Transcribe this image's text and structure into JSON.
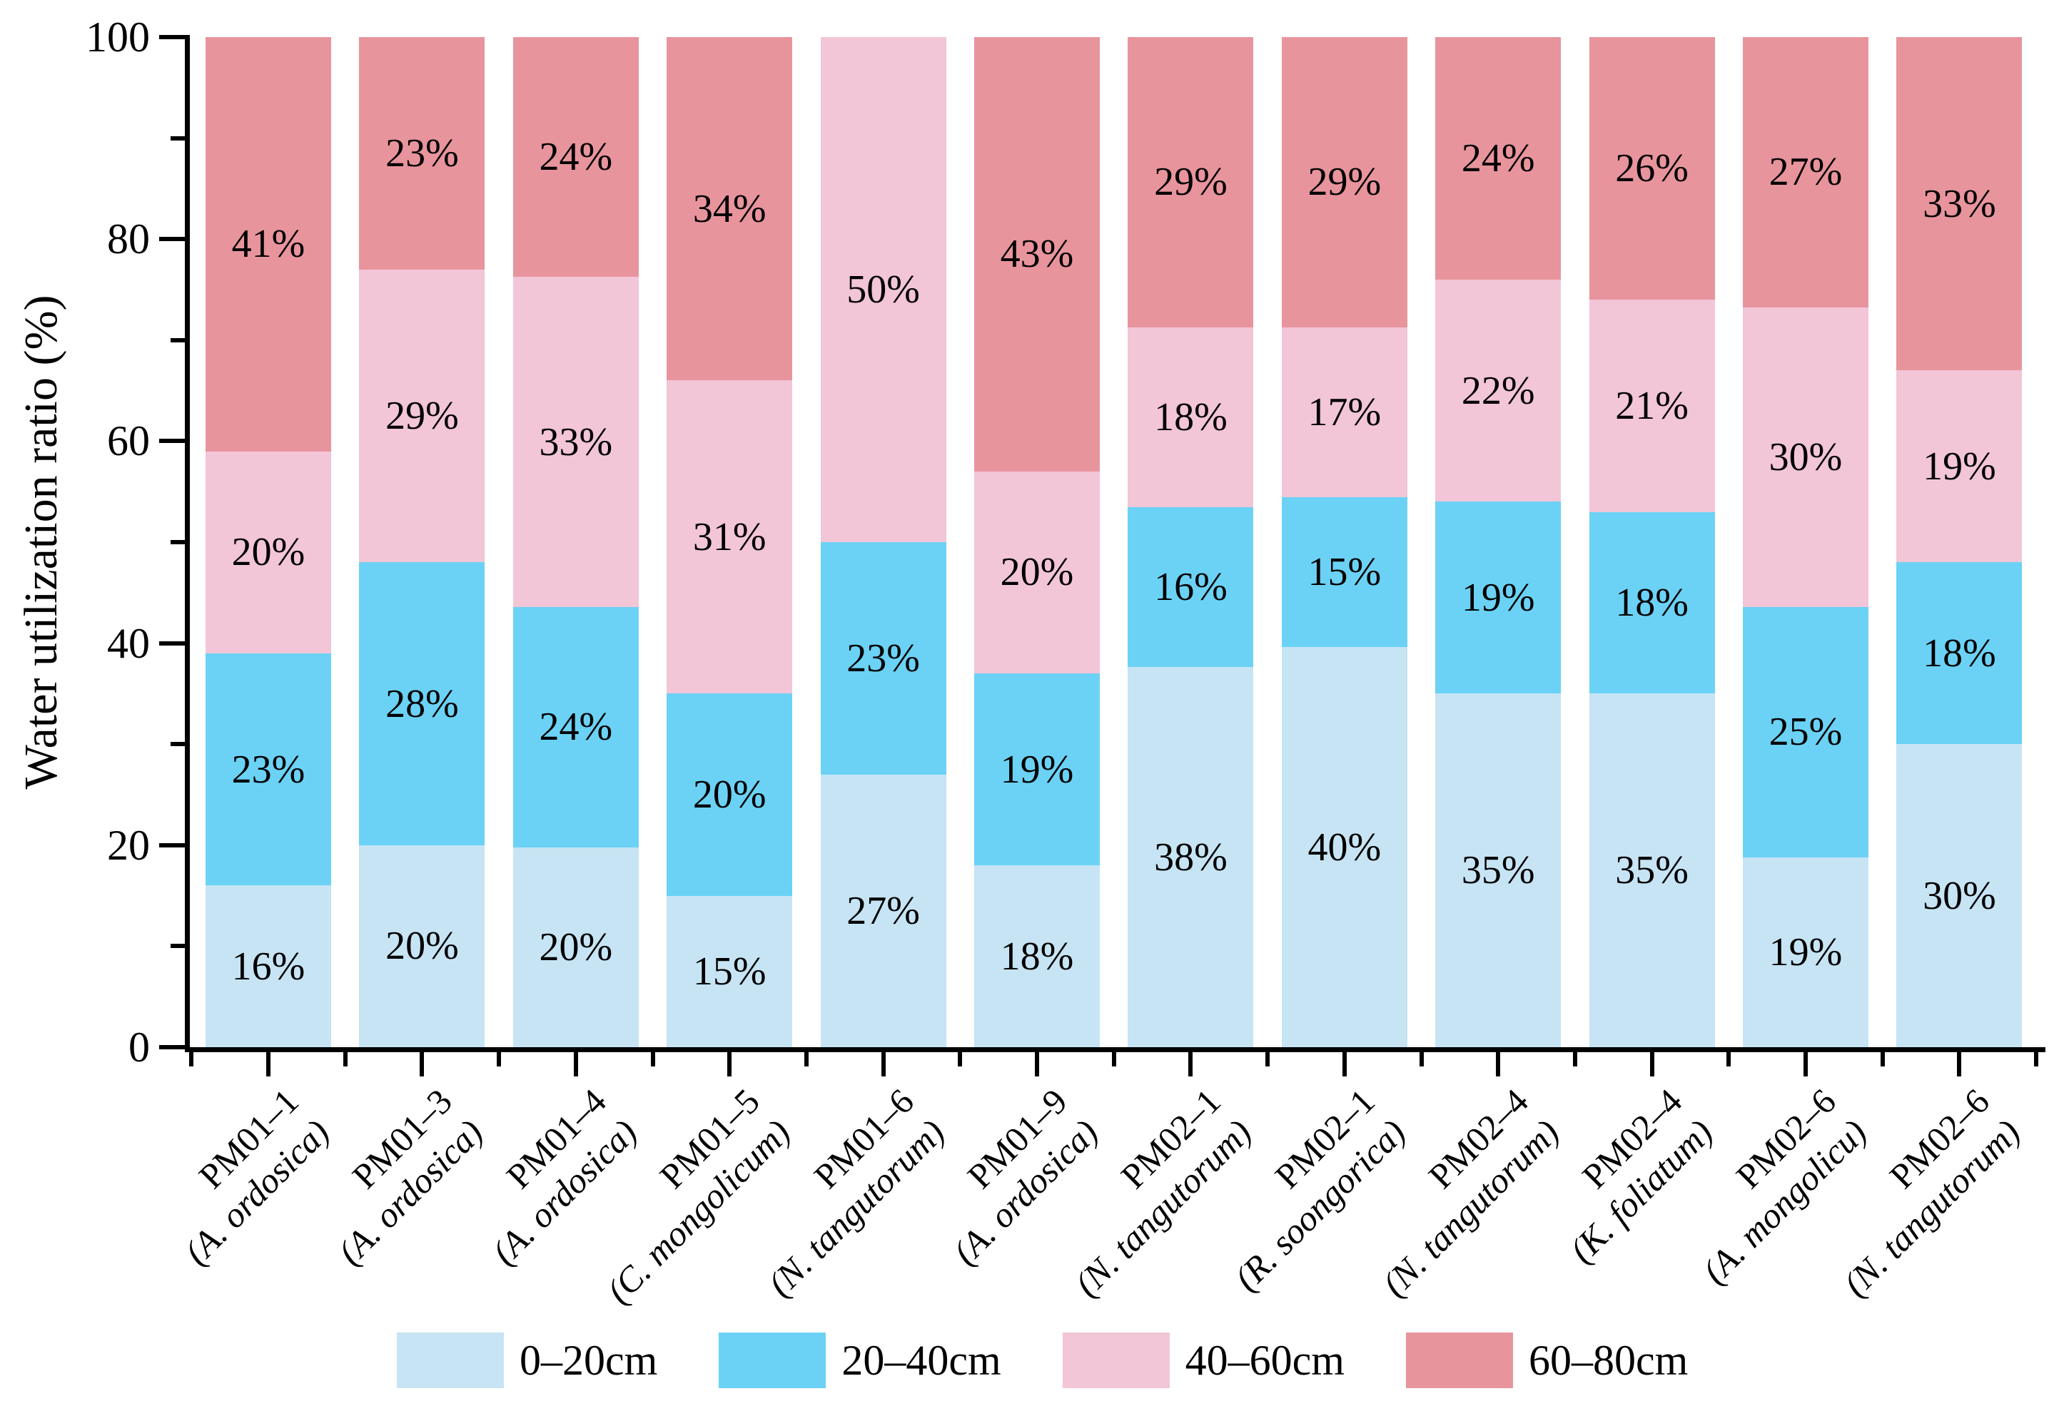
{
  "chart_data": {
    "type": "bar",
    "stacked": true,
    "orientation": "vertical",
    "title": "",
    "xlabel": "",
    "ylabel": "Water utilization ratio (%)",
    "ylim": [
      0,
      100
    ],
    "yticks_major": [
      0,
      20,
      40,
      60,
      80,
      100
    ],
    "yticks_minor": [
      10,
      30,
      50,
      70,
      90
    ],
    "grid": false,
    "legend_position": "bottom",
    "value_label_suffix": "%",
    "categories": [
      {
        "code": "PM01–1",
        "species": "(A. ordosica)"
      },
      {
        "code": "PM01–3",
        "species": "(A. ordosica)"
      },
      {
        "code": "PM01–4",
        "species": "(A. ordosica)"
      },
      {
        "code": "PM01–5",
        "species": "(C. mongolicum)"
      },
      {
        "code": "PM01–6",
        "species": "(N. tangutorum)"
      },
      {
        "code": "PM01–9",
        "species": "(A. ordosica)"
      },
      {
        "code": "PM02–1",
        "species": "(N. tangutorum)"
      },
      {
        "code": "PM02–1",
        "species": "(R. soongorica)"
      },
      {
        "code": "PM02–4",
        "species": "(N. tangutorum)"
      },
      {
        "code": "PM02–4",
        "species": "(K. foliatum)"
      },
      {
        "code": "PM02–6",
        "species": "(A. mongolicu)"
      },
      {
        "code": "PM02–6",
        "species": "(N. tangutorum)"
      }
    ],
    "series": [
      {
        "name": "0–20cm",
        "color": "#C6E4F4",
        "values": [
          16,
          20,
          20,
          15,
          27,
          18,
          38,
          40,
          35,
          35,
          19,
          30
        ]
      },
      {
        "name": "20–40cm",
        "color": "#6BD2F5",
        "values": [
          23,
          28,
          24,
          20,
          23,
          19,
          16,
          15,
          19,
          18,
          25,
          18
        ]
      },
      {
        "name": "40–60cm",
        "color": "#F2C5D7",
        "values": [
          20,
          29,
          33,
          31,
          50,
          20,
          18,
          17,
          22,
          21,
          30,
          19
        ]
      },
      {
        "name": "60–80cm",
        "color": "#E8949D",
        "values": [
          41,
          23,
          24,
          34,
          0,
          43,
          29,
          29,
          24,
          26,
          27,
          33
        ]
      }
    ]
  }
}
